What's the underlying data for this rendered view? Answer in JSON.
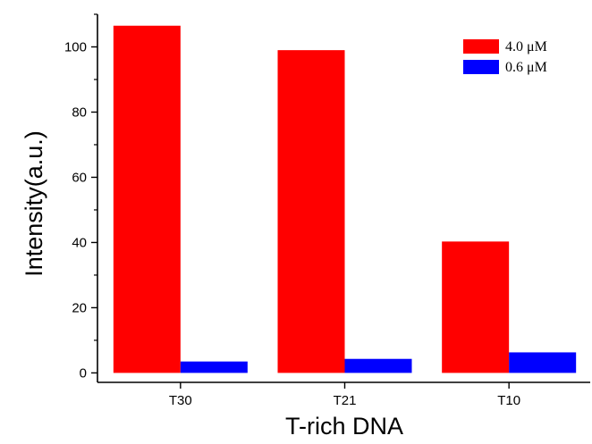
{
  "chart_data": {
    "type": "bar",
    "title": "",
    "xlabel": "T-rich DNA",
    "ylabel": "Intensity(a.u.)",
    "categories": [
      "T30",
      "T21",
      "T10"
    ],
    "series": [
      {
        "name": "4.0 μM",
        "color": "#ff0000",
        "values": [
          106.5,
          99,
          40.3
        ]
      },
      {
        "name": "0.6 μM",
        "color": "#0000ff",
        "values": [
          3.5,
          4.3,
          6.3
        ]
      }
    ],
    "ylim": [
      -2.9,
      110
    ],
    "yticks": [
      0,
      20,
      40,
      60,
      80,
      100
    ],
    "yminor_ticks": [
      10,
      30,
      50,
      70,
      90,
      110
    ],
    "grid": false,
    "legend_position": "top-right"
  }
}
